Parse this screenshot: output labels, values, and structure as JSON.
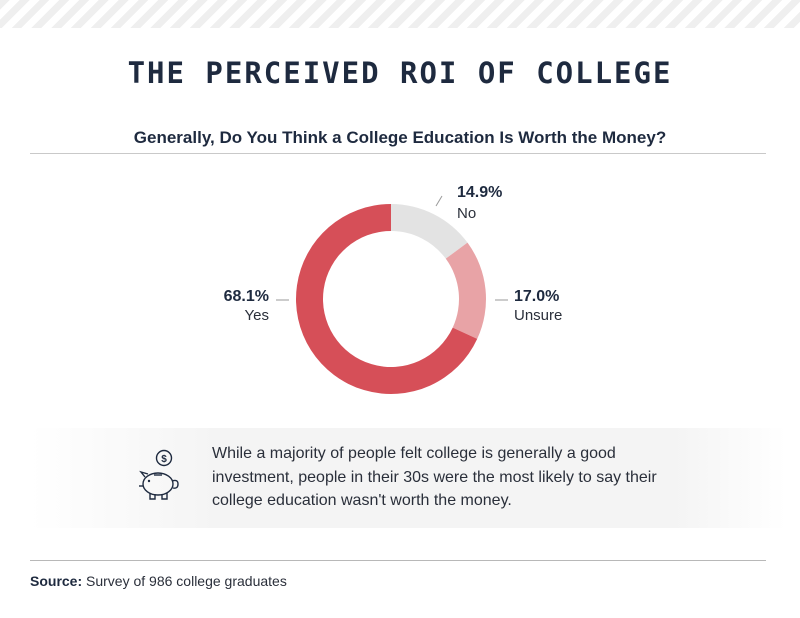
{
  "title": "THE PERCEIVED ROI OF COLLEGE",
  "colors": {
    "yes": "#d64f58",
    "unsure": "#e8a3a6",
    "no": "#e3e3e3",
    "text": "#1e2a3f"
  },
  "chart_data": {
    "type": "pie",
    "title": "Generally, Do You Think a College Education Is Worth the Money?",
    "slices": [
      {
        "label": "No",
        "value": 14.9,
        "display": "14.9%",
        "color": "#e3e3e3"
      },
      {
        "label": "Unsure",
        "value": 17.0,
        "display": "17.0%",
        "color": "#e8a3a6"
      },
      {
        "label": "Yes",
        "value": 68.1,
        "display": "68.1%",
        "color": "#d64f58"
      }
    ]
  },
  "callout": {
    "icon": "piggy-bank-icon",
    "text": "While a majority of people felt college is generally a good investment, people in their 30s were the most likely to say their college education wasn't worth the money."
  },
  "source": {
    "label": "Source:",
    "text": "Survey of 986 college graduates"
  }
}
